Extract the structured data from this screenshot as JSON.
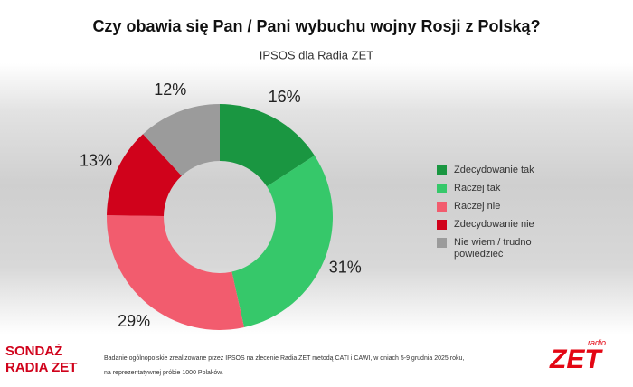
{
  "chart_data": {
    "type": "donut",
    "title": "Czy obawia się Pan / Pani wybuchu wojny Rosji z Polską?",
    "subtitle": "IPSOS dla Radia ZET",
    "categories": [
      "Zdecydowanie tak",
      "Raczej tak",
      "Raczej nie",
      "Zdecydowanie nie",
      "Nie wiem / trudno powiedzieć"
    ],
    "values": [
      16,
      31,
      29,
      13,
      12
    ],
    "value_labels": [
      "16%",
      "31%",
      "29%",
      "13%",
      "12%"
    ],
    "colors": [
      "#1a9641",
      "#36c86a",
      "#f25c6e",
      "#d0021b",
      "#9b9b9b"
    ],
    "legend": "right"
  },
  "brand": [
    "SONDAŻ",
    "RADIA ZET"
  ],
  "source_note": [
    "Badanie ogólnopolskie zrealizowane przez IPSOS na zlecenie Radia ZET metodą CATI i CAWI, w dniach 5-9 grudnia 2025 roku,",
    "na reprezentatywnej próbie 1000 Polaków."
  ],
  "radio_logo": [
    "radio",
    "ZET"
  ]
}
